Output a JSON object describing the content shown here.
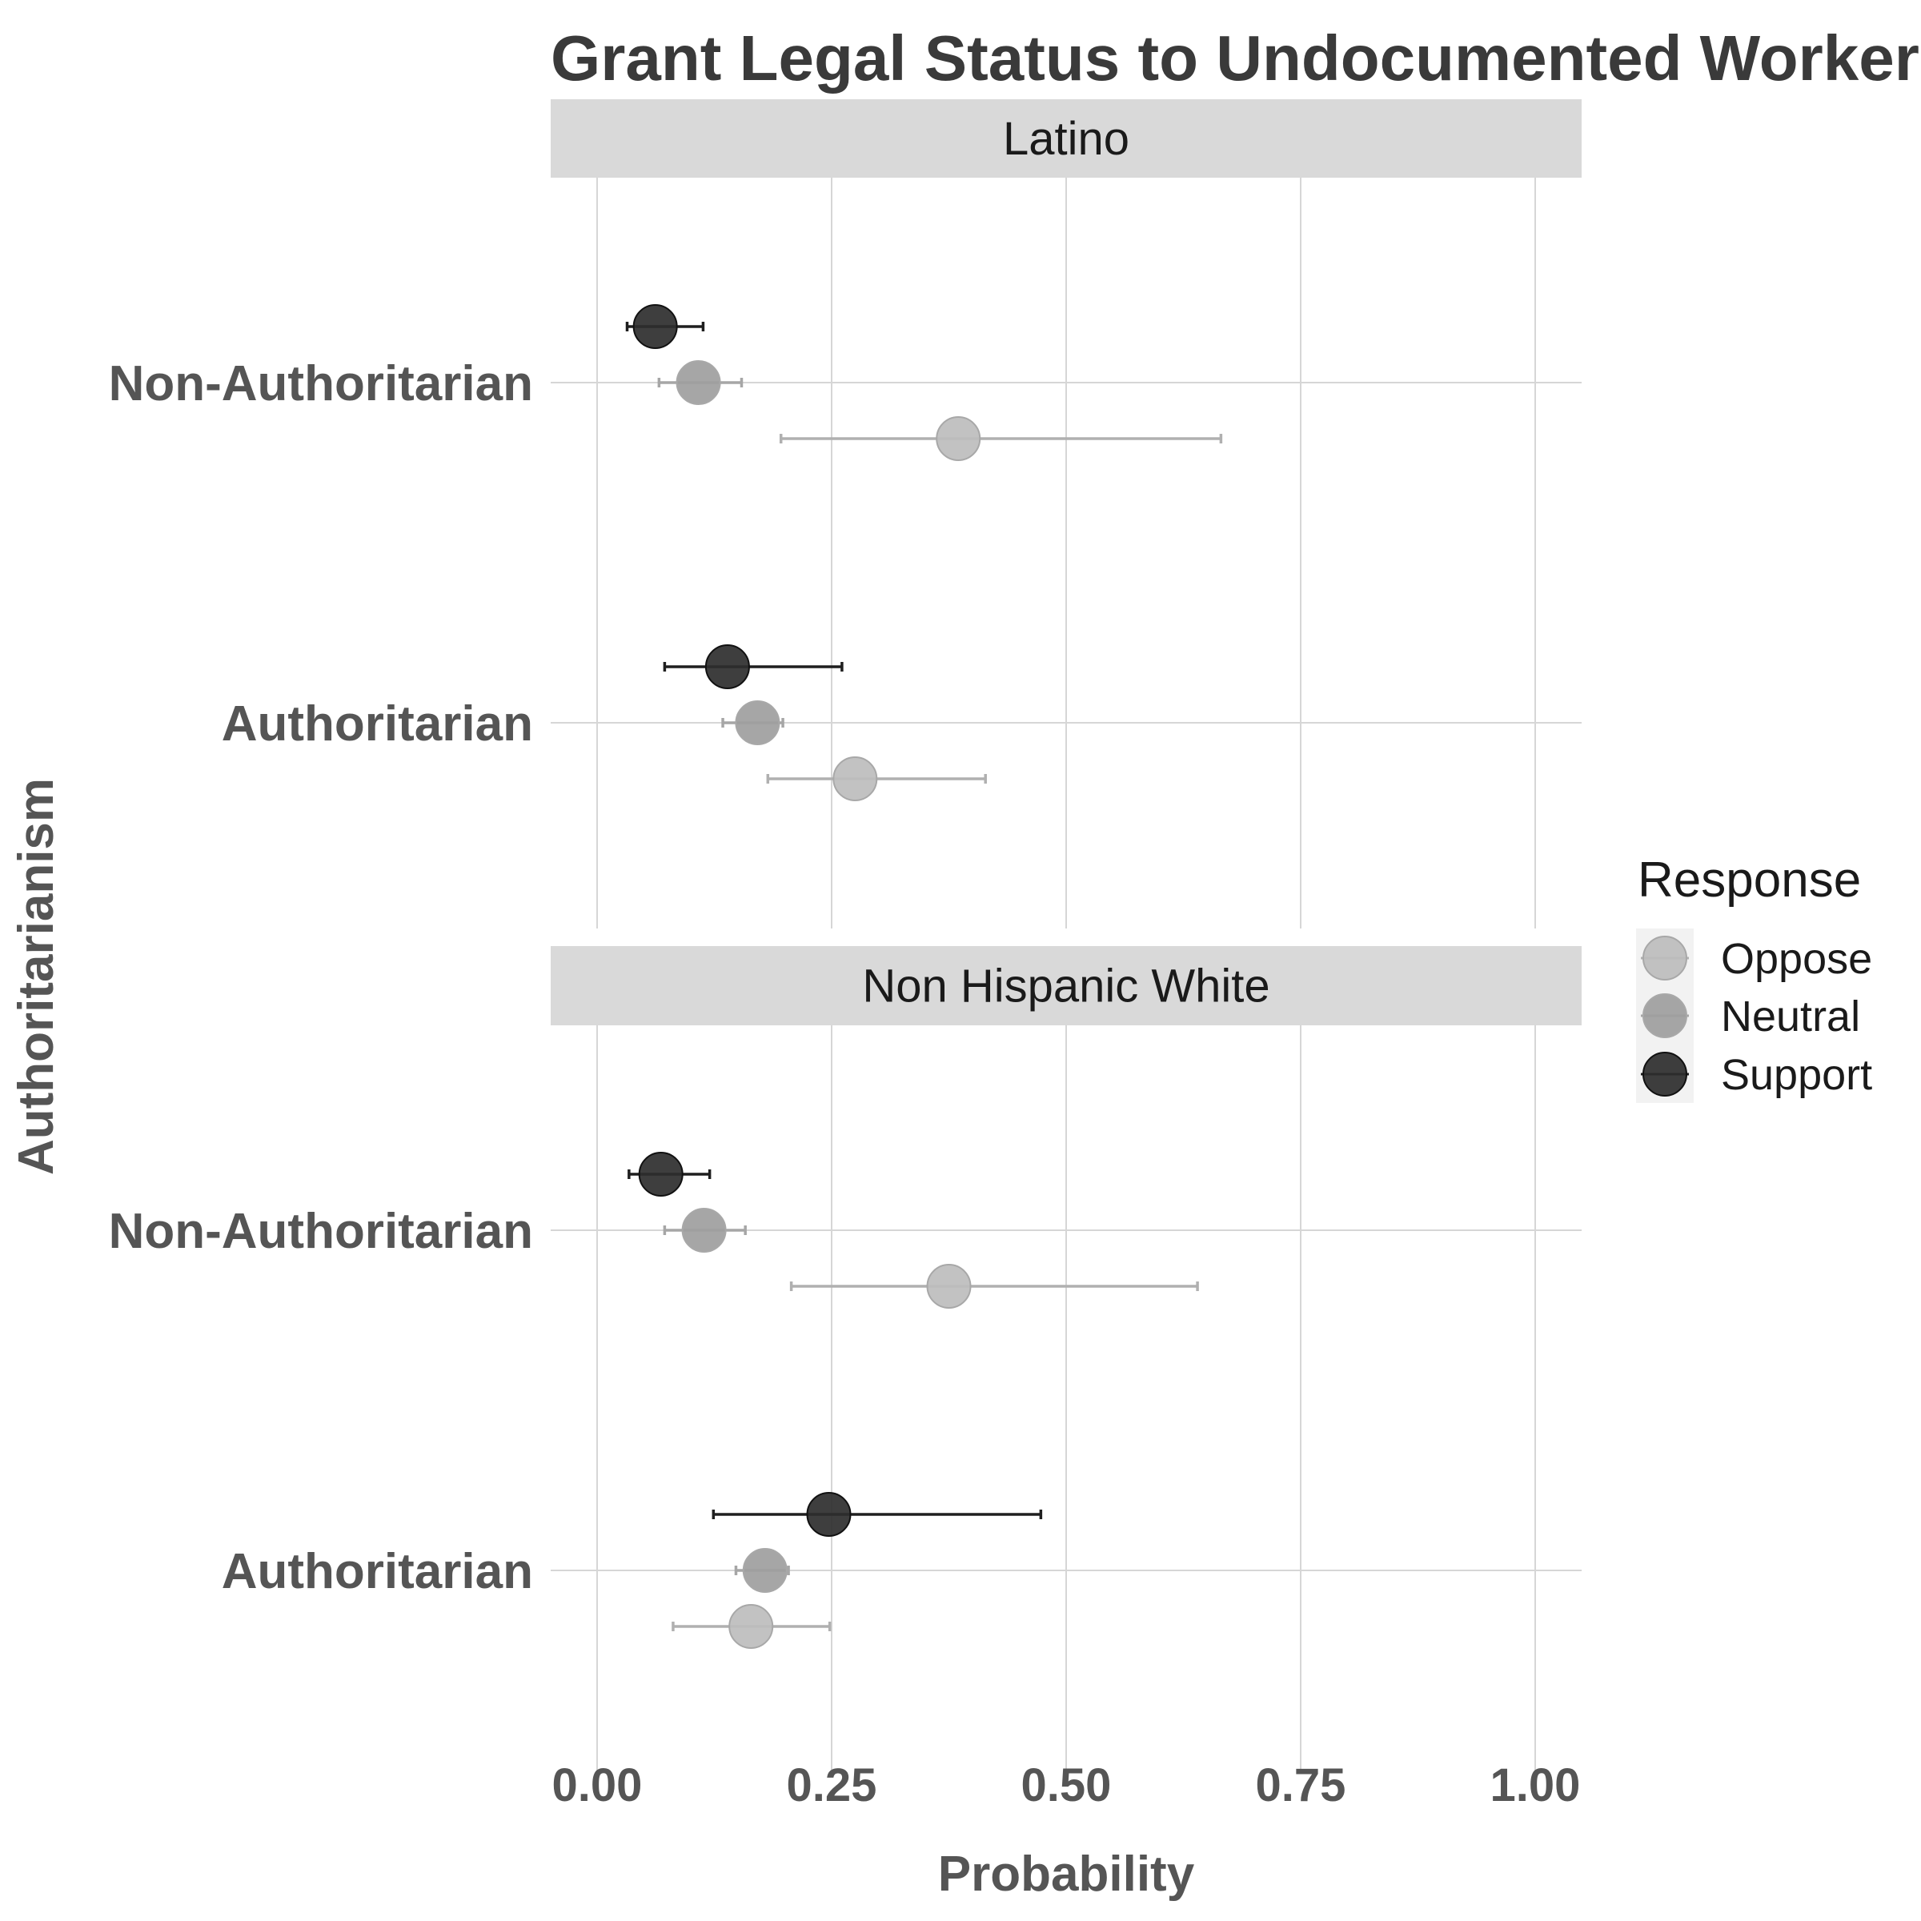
{
  "title": "Grant Legal Status to Undocumented Workers",
  "chart_data": {
    "type": "scatter",
    "title": "Grant Legal Status to Undocumented Workers",
    "xlabel": "Probability",
    "ylabel": "Authoritarianism",
    "xlim": [
      0,
      1
    ],
    "x_ticks": [
      "0.00",
      "0.25",
      "0.50",
      "0.75",
      "1.00"
    ],
    "x_tick_values": [
      0,
      0.25,
      0.5,
      0.75,
      1.0
    ],
    "y_categories": [
      "Non-Authoritarian",
      "Authoritarian"
    ],
    "grid": true,
    "legend": {
      "title": "Response",
      "placement": "right",
      "entries": [
        "Oppose",
        "Neutral",
        "Support"
      ]
    },
    "colors": {
      "Oppose": "#bdbdbd",
      "Neutral": "#9e9e9e",
      "Support": "#2e2e2e",
      "Oppose_bar": "#b0b0b0",
      "Neutral_bar": "#a6a6a6",
      "Support_bar": "#1f1f1f",
      "strip": "#d9d9d9",
      "grid": "#d6d6d6"
    },
    "panels": [
      {
        "name": "Latino",
        "groups": [
          {
            "category": "Non-Authoritarian",
            "points": [
              {
                "response": "Support",
                "estimate": 0.062,
                "low": 0.032,
                "high": 0.113
              },
              {
                "response": "Neutral",
                "estimate": 0.108,
                "low": 0.066,
                "high": 0.154
              },
              {
                "response": "Oppose",
                "estimate": 0.385,
                "low": 0.196,
                "high": 0.665
              }
            ]
          },
          {
            "category": "Authoritarian",
            "points": [
              {
                "response": "Support",
                "estimate": 0.139,
                "low": 0.072,
                "high": 0.261
              },
              {
                "response": "Neutral",
                "estimate": 0.171,
                "low": 0.134,
                "high": 0.198
              },
              {
                "response": "Oppose",
                "estimate": 0.275,
                "low": 0.182,
                "high": 0.414
              }
            ]
          }
        ]
      },
      {
        "name": "Non Hispanic White",
        "groups": [
          {
            "category": "Non-Authoritarian",
            "points": [
              {
                "response": "Support",
                "estimate": 0.068,
                "low": 0.034,
                "high": 0.12
              },
              {
                "response": "Neutral",
                "estimate": 0.114,
                "low": 0.072,
                "high": 0.158
              },
              {
                "response": "Oppose",
                "estimate": 0.375,
                "low": 0.207,
                "high": 0.64
              }
            ]
          },
          {
            "category": "Authoritarian",
            "points": [
              {
                "response": "Support",
                "estimate": 0.247,
                "low": 0.124,
                "high": 0.473
              },
              {
                "response": "Neutral",
                "estimate": 0.179,
                "low": 0.148,
                "high": 0.204
              },
              {
                "response": "Oppose",
                "estimate": 0.164,
                "low": 0.081,
                "high": 0.248
              }
            ]
          }
        ]
      }
    ]
  }
}
